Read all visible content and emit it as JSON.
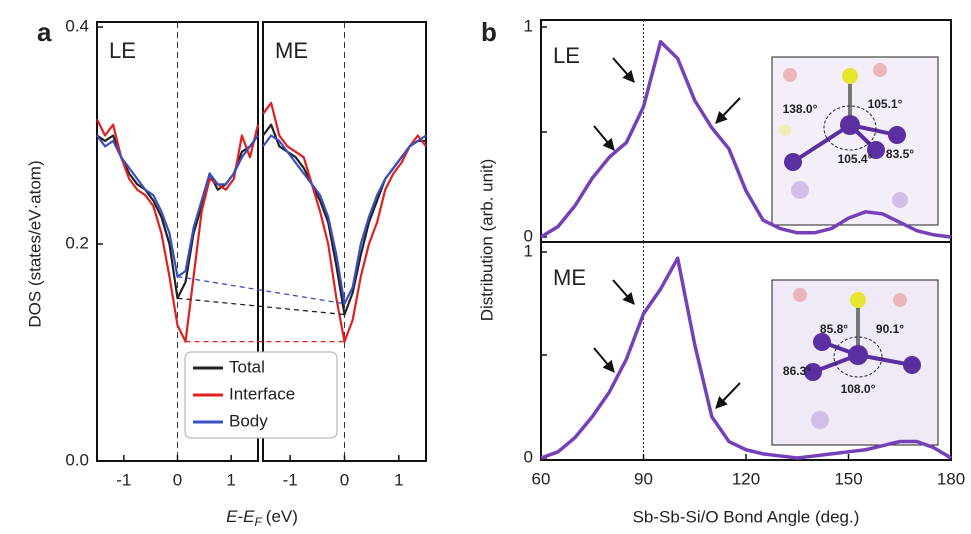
{
  "chart_data": [
    {
      "type": "line",
      "panel_label": "a",
      "title": "LE",
      "ylabel": "DOS (states/eV·atom)",
      "xlabel": "E-E",
      "xlabel_sub": "F",
      "xlabel_unit": "(eV)",
      "xlim": [
        -1.5,
        1.5
      ],
      "xticks": [
        -1,
        0,
        1
      ],
      "ylim": [
        0,
        0.4
      ],
      "yticks": [
        {
          "value": 0,
          "label": "0.0"
        },
        0.2,
        0.4
      ],
      "vline": 0,
      "legend": "lower right",
      "x": [
        -1.5,
        -1.35,
        -1.2,
        -1.05,
        -0.9,
        -0.75,
        -0.6,
        -0.45,
        -0.3,
        -0.15,
        0,
        0.15,
        0.3,
        0.45,
        0.6,
        0.75,
        0.9,
        1.05,
        1.2,
        1.35,
        1.5
      ],
      "series": [
        {
          "name": "Total",
          "color": "#222222",
          "values": [
            0.3,
            0.295,
            0.3,
            0.28,
            0.265,
            0.255,
            0.25,
            0.24,
            0.225,
            0.2,
            0.15,
            0.165,
            0.21,
            0.235,
            0.265,
            0.25,
            0.255,
            0.265,
            0.285,
            0.29,
            0.3
          ]
        },
        {
          "name": "Interface",
          "color": "#e02020",
          "values": [
            0.315,
            0.3,
            0.31,
            0.28,
            0.26,
            0.25,
            0.245,
            0.235,
            0.21,
            0.17,
            0.125,
            0.11,
            0.17,
            0.23,
            0.26,
            0.255,
            0.25,
            0.26,
            0.3,
            0.28,
            0.31
          ]
        },
        {
          "name": "Body",
          "color": "#3a4fc0",
          "values": [
            0.3,
            0.29,
            0.295,
            0.28,
            0.27,
            0.26,
            0.25,
            0.245,
            0.23,
            0.21,
            0.17,
            0.175,
            0.215,
            0.24,
            0.265,
            0.255,
            0.255,
            0.265,
            0.28,
            0.29,
            0.3
          ]
        }
      ]
    },
    {
      "type": "line",
      "title": "ME",
      "xlim": [
        -1.5,
        1.5
      ],
      "xticks": [
        -1,
        0,
        1
      ],
      "ylim": [
        0,
        0.4
      ],
      "vline": 0,
      "x": [
        -1.5,
        -1.35,
        -1.2,
        -1.05,
        -0.9,
        -0.75,
        -0.6,
        -0.45,
        -0.3,
        -0.15,
        0,
        0.15,
        0.3,
        0.45,
        0.6,
        0.75,
        0.9,
        1.05,
        1.2,
        1.35,
        1.5
      ],
      "series": [
        {
          "name": "Total",
          "color": "#222222",
          "values": [
            0.3,
            0.31,
            0.29,
            0.285,
            0.28,
            0.27,
            0.255,
            0.24,
            0.22,
            0.18,
            0.135,
            0.155,
            0.19,
            0.22,
            0.24,
            0.26,
            0.27,
            0.28,
            0.29,
            0.295,
            0.295
          ]
        },
        {
          "name": "Interface",
          "color": "#e02020",
          "values": [
            0.32,
            0.33,
            0.3,
            0.29,
            0.285,
            0.28,
            0.255,
            0.23,
            0.2,
            0.15,
            0.11,
            0.13,
            0.17,
            0.2,
            0.22,
            0.25,
            0.265,
            0.275,
            0.29,
            0.3,
            0.29
          ]
        },
        {
          "name": "Body",
          "color": "#3a4fc0",
          "values": [
            0.29,
            0.3,
            0.295,
            0.285,
            0.275,
            0.265,
            0.255,
            0.245,
            0.225,
            0.19,
            0.145,
            0.16,
            0.2,
            0.225,
            0.245,
            0.26,
            0.27,
            0.28,
            0.29,
            0.295,
            0.3
          ]
        }
      ]
    },
    {
      "type": "line",
      "panel_label": "b",
      "title": "LE",
      "ylabel": "Distribution (arb. unit)",
      "xlim": [
        60,
        180
      ],
      "ylim": [
        0,
        1
      ],
      "yticks": [
        0,
        1
      ],
      "yminor": [
        0.5
      ],
      "vline": 90,
      "annotations": [
        "138.0°",
        "105.1°",
        "105.4°",
        "83.5°"
      ],
      "x": [
        60,
        65,
        70,
        75,
        80,
        85,
        90,
        95,
        100,
        105,
        110,
        115,
        120,
        125,
        130,
        135,
        140,
        145,
        150,
        155,
        160,
        165,
        170,
        175,
        180
      ],
      "series": [
        {
          "name": "LE",
          "color": "#7540b8",
          "values": [
            0.0,
            0.05,
            0.15,
            0.28,
            0.38,
            0.45,
            0.62,
            0.93,
            0.85,
            0.65,
            0.52,
            0.42,
            0.22,
            0.08,
            0.04,
            0.02,
            0.02,
            0.04,
            0.09,
            0.12,
            0.11,
            0.07,
            0.03,
            0.01,
            0.0
          ]
        }
      ]
    },
    {
      "type": "line",
      "title": "ME",
      "xlabel": "Sb-Sb-Si/O Bond Angle (deg.)",
      "xlim": [
        60,
        180
      ],
      "xticks": [
        60,
        90,
        120,
        150,
        180
      ],
      "ylim": [
        0,
        1
      ],
      "yticks": [
        0,
        1
      ],
      "yminor": [
        0.5
      ],
      "vline": 90,
      "annotations": [
        "85.8°",
        "90.1°",
        "86.3°",
        "108.0°"
      ],
      "x": [
        60,
        65,
        70,
        75,
        80,
        85,
        90,
        95,
        100,
        105,
        110,
        115,
        120,
        125,
        130,
        135,
        140,
        145,
        150,
        155,
        160,
        165,
        170,
        175,
        180
      ],
      "series": [
        {
          "name": "ME",
          "color": "#7540b8",
          "values": [
            0.0,
            0.03,
            0.1,
            0.2,
            0.32,
            0.48,
            0.7,
            0.82,
            0.97,
            0.55,
            0.2,
            0.08,
            0.04,
            0.02,
            0.01,
            0.0,
            0.01,
            0.02,
            0.03,
            0.04,
            0.06,
            0.08,
            0.08,
            0.05,
            0.0
          ]
        }
      ]
    }
  ]
}
